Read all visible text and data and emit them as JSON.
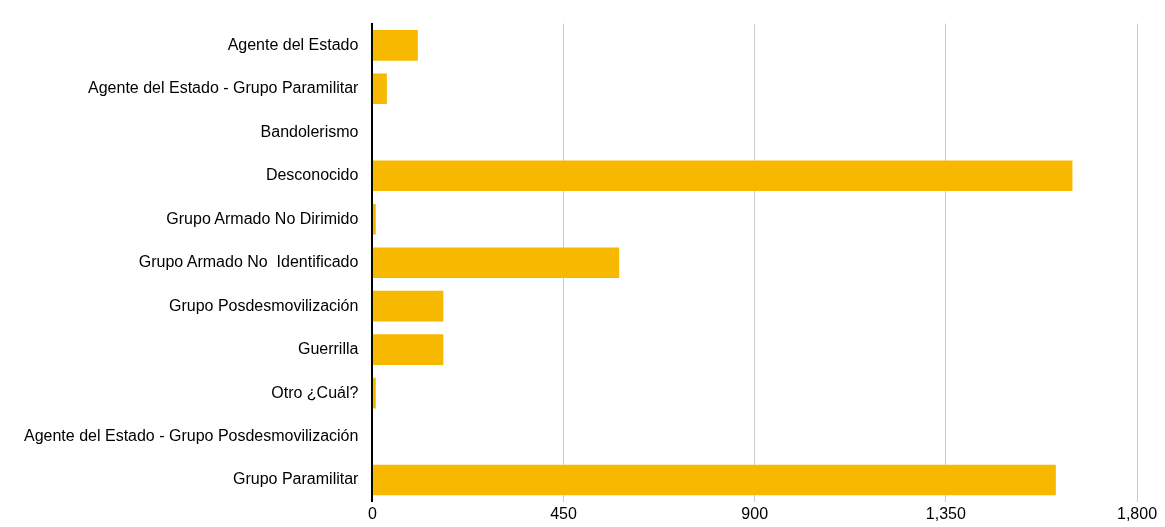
{
  "chart_data": {
    "type": "bar",
    "orientation": "horizontal",
    "categories": [
      "Agente del Estado",
      "Agente del Estado - Grupo Paramilitar",
      "Bandolerismo",
      "Desconocido",
      "Grupo Armado No Dirimido",
      "Grupo Armado No  Identificado",
      "Grupo Posdesmovilización",
      "Guerrilla",
      "Otro ¿Cuál?",
      "Agente del Estado - Grupo Posdesmovilización",
      "Grupo Paramilitar"
    ],
    "values": [
      107,
      34,
      0,
      1648,
      8,
      581,
      167,
      167,
      8,
      0,
      1609
    ],
    "color": "#f6b900",
    "xlim": [
      0,
      1800
    ],
    "xticks": [
      0,
      450,
      900,
      {
        "value": 1350,
        "label": "1,350"
      },
      {
        "value": 1800,
        "label": "1,800"
      }
    ],
    "grid": "x",
    "legend": false
  }
}
